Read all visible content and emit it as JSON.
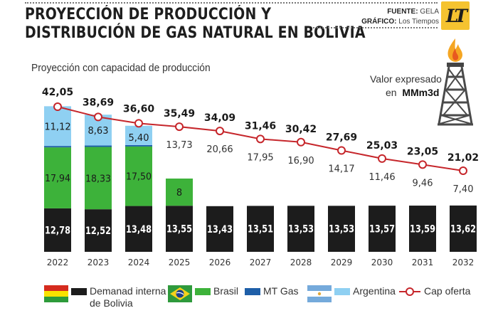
{
  "header": {
    "title_line1": "PROYECCIÓN DE PRODUCCIÓN Y",
    "title_line2": "DISTRIBUCIÓN DE GAS NATURAL EN BOLIVIA",
    "source_label": "FUENTE:",
    "source_value": "GELA",
    "graphic_label": "GRÁFICO:",
    "graphic_value": "Los Tiempos",
    "logo_text": "LT"
  },
  "subtitle": "Proyección con capacidad de producción",
  "unit_note": {
    "line1": "Valor expresado",
    "line2_prefix": "en",
    "line2_unit": "MMm3d"
  },
  "colors": {
    "demanda_interna": "#1c1c1c",
    "brasil": "#3db23a",
    "mt_gas": "#1e5fa8",
    "argentina": "#8fd0f2",
    "cap_oferta": "#c6262b",
    "logo": "#f5c330"
  },
  "chart_data": {
    "type": "bar",
    "stacked": true,
    "title": "Proyección de producción y distribución de gas natural en Bolivia",
    "subtitle": "Proyección con capacidad de producción",
    "xlabel": "",
    "ylabel": "MMm3d",
    "categories": [
      "2022",
      "2023",
      "2024",
      "2025",
      "2026",
      "2027",
      "2028",
      "2029",
      "2030",
      "2031",
      "2032"
    ],
    "series": [
      {
        "name": "Demanad interna de Bolivia",
        "type": "bar",
        "values": [
          12.78,
          12.52,
          13.48,
          13.55,
          13.43,
          13.51,
          13.53,
          13.53,
          13.57,
          13.59,
          13.62
        ]
      },
      {
        "name": "Brasil",
        "type": "bar",
        "values": [
          17.94,
          18.33,
          17.5,
          8,
          null,
          null,
          null,
          null,
          null,
          null,
          null
        ]
      },
      {
        "name": "MT Gas",
        "type": "bar",
        "values": [
          null,
          null,
          null,
          null,
          null,
          null,
          null,
          null,
          null,
          null,
          null
        ]
      },
      {
        "name": "Argentina",
        "type": "bar",
        "values": [
          11.12,
          8.63,
          5.4,
          null,
          null,
          null,
          null,
          null,
          null,
          null,
          null
        ]
      },
      {
        "name": "Cap oferta",
        "type": "line",
        "values": [
          42.05,
          38.69,
          36.6,
          35.49,
          34.09,
          31.46,
          30.42,
          27.69,
          25.03,
          23.05,
          21.02
        ]
      }
    ],
    "surplus_labels": [
      null,
      null,
      null,
      "13,73",
      "20,66",
      "17,95",
      "16,90",
      "14,17",
      "11,46",
      "9,46",
      "7,40"
    ],
    "value_labels": {
      "demanda": [
        "12,78",
        "12,52",
        "13,48",
        "13,55",
        "13,43",
        "13,51",
        "13,53",
        "13,53",
        "13,57",
        "13,59",
        "13,62"
      ],
      "brasil": [
        "17,94",
        "18,33",
        "17,50",
        "8",
        null,
        null,
        null,
        null,
        null,
        null,
        null
      ],
      "argentina": [
        "11,12",
        "8,63",
        "5,40",
        null,
        null,
        null,
        null,
        null,
        null,
        null,
        null
      ],
      "cap_oferta": [
        "42,05",
        "38,69",
        "36,60",
        "35,49",
        "34,09",
        "31,46",
        "30,42",
        "27,69",
        "25,03",
        "23,05",
        "21,02"
      ]
    },
    "legend": {
      "placement": "bottom",
      "items": [
        {
          "label_line1": "Demanad interna",
          "label_line2": "de Bolivia",
          "flag": "bolivia"
        },
        {
          "label_line1": "Brasil",
          "flag": "brasil"
        },
        {
          "label_line1": "MT Gas"
        },
        {
          "label_line1": "Argentina",
          "flag": "argentina"
        },
        {
          "label_line1": "Cap oferta",
          "marker": "line-circle"
        }
      ]
    },
    "grid": false
  }
}
